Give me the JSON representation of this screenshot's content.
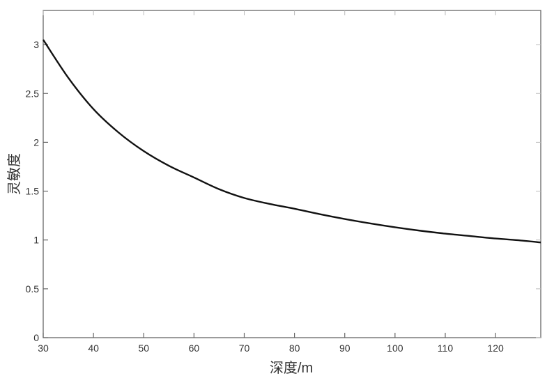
{
  "chart_data": {
    "type": "line",
    "title": "",
    "xlabel": "深度/m",
    "ylabel": "灵敏度",
    "xlim": [
      30,
      129
    ],
    "ylim": [
      0,
      3.35
    ],
    "xticks": [
      30,
      40,
      50,
      60,
      70,
      80,
      90,
      100,
      110,
      120
    ],
    "xtick_labels": [
      "30",
      "40",
      "50",
      "60",
      "70",
      "80",
      "90",
      "100",
      "110",
      "120"
    ],
    "yticks": [
      0,
      0.5,
      1,
      1.5,
      2,
      2.5,
      3
    ],
    "ytick_labels": [
      "0",
      "0.5",
      "1",
      "1.5",
      "2",
      "2.5",
      "3"
    ],
    "grid": false,
    "box": true,
    "colors": {
      "line": "#111111",
      "axes": "#666666"
    },
    "series": [
      {
        "x": [
          30,
          35,
          40,
          45,
          50,
          55,
          60,
          65,
          70,
          75,
          80,
          85,
          90,
          95,
          100,
          105,
          110,
          115,
          120,
          125,
          129
        ],
        "y": [
          3.05,
          2.66,
          2.34,
          2.1,
          1.91,
          1.76,
          1.64,
          1.52,
          1.43,
          1.37,
          1.32,
          1.265,
          1.215,
          1.17,
          1.13,
          1.095,
          1.065,
          1.04,
          1.015,
          0.995,
          0.975
        ]
      }
    ]
  }
}
